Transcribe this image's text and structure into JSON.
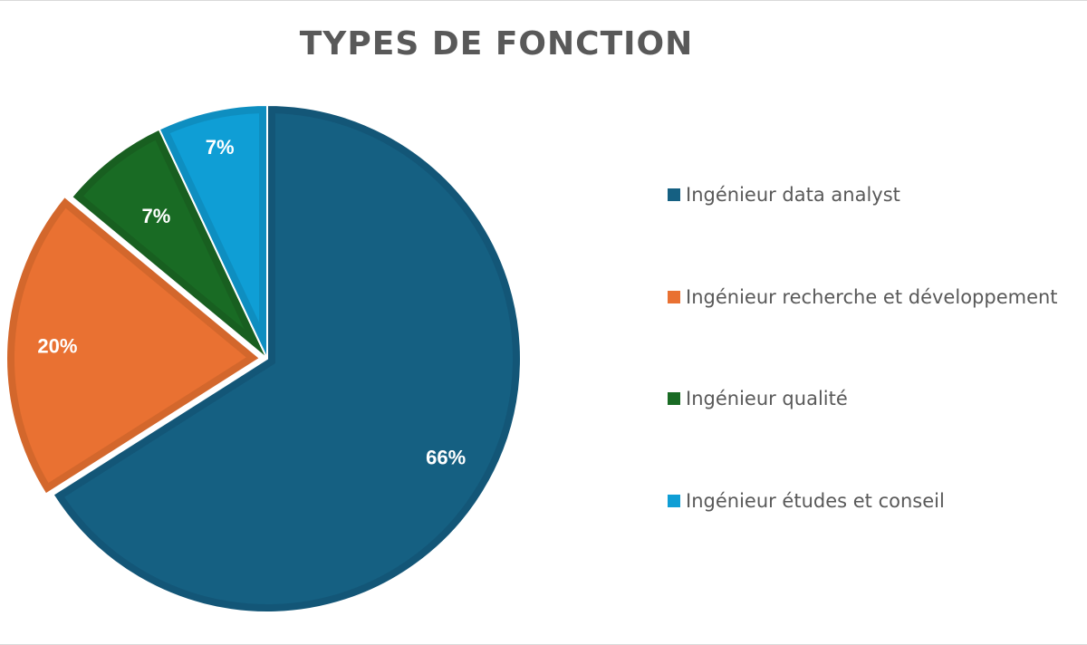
{
  "chart_data": {
    "type": "pie",
    "title": "TYPES DE FONCTION",
    "categories": [
      "Ingénieur data analyst",
      "Ingénieur recherche et développement",
      "Ingénieur qualité",
      "Ingénieur études et conseil"
    ],
    "values": [
      66,
      20,
      7,
      7
    ],
    "labels": [
      "66%",
      "20%",
      "7%",
      "7%"
    ],
    "colors": [
      "#156082",
      "#E97132",
      "#196B24",
      "#0F9ED5"
    ],
    "border_colors": [
      "#135677",
      "#D3672C",
      "#185F20",
      "#0E8EC0"
    ],
    "exploded": [
      false,
      true,
      false,
      false
    ],
    "legend_position": "right",
    "start_angle_deg": 0,
    "direction": "clockwise"
  }
}
